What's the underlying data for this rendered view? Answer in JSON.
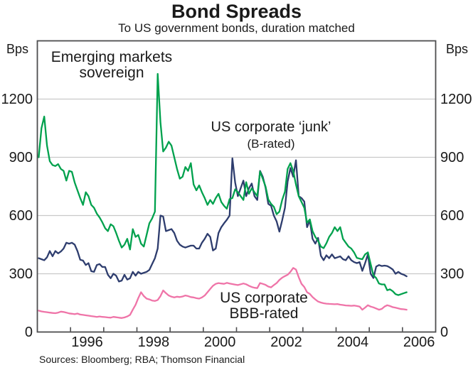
{
  "title": "Bond Spreads",
  "subtitle": "To US government bonds, duration matched",
  "unit_left": "Bps",
  "unit_right": "Bps",
  "source": "Sources: Bloomberg; RBA; Thomson Financial",
  "colors": {
    "green": "#00A14D",
    "navy": "#2E3D6E",
    "pink": "#EF74A8",
    "grid": "#C9C9C9",
    "axis": "#4D4D4F",
    "text": "#1A1A1A",
    "background": "#FFFFFF"
  },
  "chart_data": {
    "type": "line",
    "title": "Bond Spreads",
    "subtitle": "To US government bonds, duration matched",
    "ylabel": "Bps",
    "ylim": [
      0,
      1500
    ],
    "yticks": [
      0,
      300,
      600,
      900,
      1200
    ],
    "xticks_years": [
      1996,
      1997,
      1998,
      1999,
      2000,
      2001,
      2002,
      2003,
      2004,
      2005,
      2006
    ],
    "xlabels": [
      "1996",
      "1998",
      "2000",
      "2002",
      "2004",
      "2006"
    ],
    "x_range_years": [
      1995,
      2007
    ],
    "frequency": "monthly",
    "x_start_year": 1995,
    "grid": true,
    "legend_position": "inline-labels",
    "series": [
      {
        "name": "Emerging markets sovereign",
        "label_lines": [
          "Emerging markets",
          "sovereign"
        ],
        "color": "#00A14D",
        "values": [
          900,
          1050,
          1110,
          960,
          880,
          860,
          855,
          865,
          840,
          830,
          780,
          830,
          825,
          770,
          730,
          690,
          655,
          720,
          700,
          655,
          640,
          610,
          590,
          565,
          535,
          520,
          555,
          545,
          510,
          470,
          435,
          450,
          480,
          425,
          530,
          490,
          500,
          455,
          440,
          500,
          560,
          585,
          620,
          1330,
          1080,
          930,
          950,
          980,
          960,
          900,
          840,
          790,
          800,
          850,
          830,
          870,
          760,
          730,
          755,
          720,
          690,
          655,
          680,
          660,
          690,
          712,
          670,
          650,
          635,
          685,
          690,
          735,
          720,
          700,
          680,
          772,
          712,
          740,
          720,
          700,
          827,
          790,
          750,
          683,
          660,
          645,
          607,
          620,
          680,
          723,
          840,
          870,
          830,
          760,
          700,
          670,
          640,
          563,
          580,
          520,
          490,
          470,
          440,
          432,
          457,
          490,
          510,
          540,
          520,
          540,
          480,
          460,
          440,
          430,
          410,
          382,
          378,
          375,
          400,
          410,
          350,
          292,
          278,
          250,
          245,
          245,
          215,
          220,
          210,
          195,
          190,
          195,
          200,
          205
        ]
      },
      {
        "name": "US corporate junk (B-rated)",
        "label_lines": [
          "US corporate ‘junk’",
          "(B-rated)"
        ],
        "color": "#2E3D6E",
        "values": [
          380,
          375,
          370,
          385,
          417,
          390,
          417,
          405,
          415,
          430,
          460,
          455,
          460,
          450,
          417,
          372,
          368,
          345,
          355,
          313,
          310,
          345,
          350,
          335,
          335,
          295,
          277,
          300,
          290,
          260,
          265,
          295,
          270,
          277,
          310,
          290,
          310,
          300,
          305,
          310,
          320,
          350,
          380,
          430,
          600,
          595,
          520,
          525,
          530,
          510,
          470,
          450,
          440,
          435,
          440,
          445,
          445,
          430,
          430,
          460,
          480,
          506,
          490,
          420,
          430,
          510,
          540,
          560,
          578,
          600,
          895,
          770,
          700,
          740,
          780,
          700,
          740,
          765,
          700,
          680,
          830,
          800,
          745,
          660,
          650,
          600,
          570,
          517,
          575,
          640,
          775,
          845,
          800,
          885,
          700,
          690,
          672,
          540,
          575,
          480,
          455,
          485,
          393,
          370,
          395,
          380,
          400,
          380,
          385,
          390,
          375,
          370,
          390,
          370,
          360,
          355,
          360,
          315,
          355,
          400,
          300,
          278,
          337,
          345,
          340,
          342,
          340,
          332,
          322,
          300,
          310,
          300,
          295,
          287
        ]
      },
      {
        "name": "US corporate BBB-rated",
        "label_lines": [
          "US corporate",
          "BBB-rated"
        ],
        "color": "#EF74A8",
        "values": [
          110,
          106,
          104,
          102,
          100,
          98,
          97,
          100,
          105,
          103,
          100,
          96,
          94,
          92,
          95,
          90,
          88,
          86,
          84,
          82,
          80,
          78,
          80,
          78,
          77,
          75,
          74,
          78,
          76,
          74,
          72,
          75,
          80,
          88,
          115,
          140,
          175,
          205,
          185,
          172,
          168,
          162,
          160,
          165,
          185,
          214,
          200,
          188,
          182,
          178,
          182,
          180,
          183,
          188,
          185,
          180,
          178,
          174,
          172,
          178,
          188,
          205,
          222,
          238,
          248,
          252,
          250,
          248,
          253,
          250,
          247,
          244,
          242,
          246,
          250,
          246,
          238,
          232,
          228,
          226,
          252,
          248,
          243,
          234,
          230,
          242,
          252,
          268,
          280,
          288,
          295,
          310,
          330,
          322,
          282,
          248,
          232,
          205,
          196,
          180,
          168,
          157,
          152,
          148,
          146,
          145,
          144,
          143,
          144,
          141,
          139,
          137,
          136,
          135,
          136,
          134,
          131,
          115,
          126,
          138,
          131,
          127,
          121,
          115,
          119,
          131,
          138,
          134,
          128,
          125,
          122,
          118,
          117,
          115
        ]
      }
    ]
  }
}
